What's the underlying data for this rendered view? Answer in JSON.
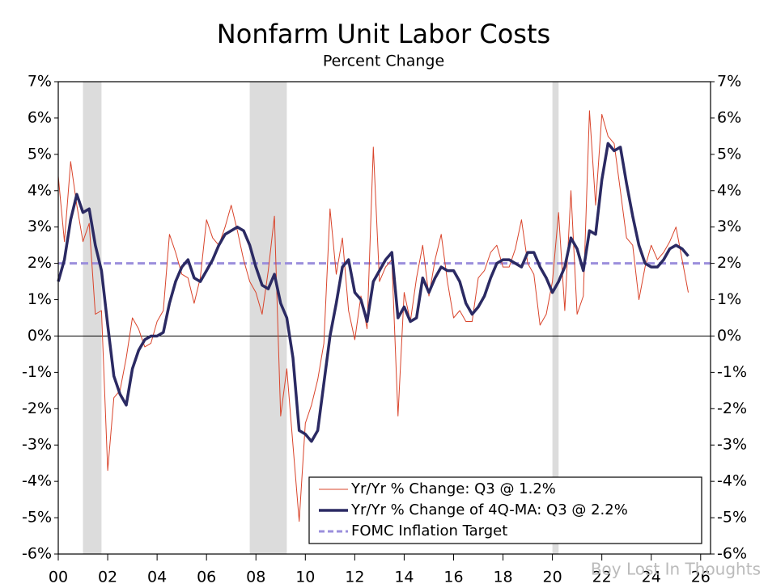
{
  "chart_data": {
    "type": "line",
    "title": "Nonfarm Unit Labor Costs",
    "subtitle": "Percent Change",
    "x": [
      2000,
      2000.25,
      2000.5,
      2000.75,
      2001,
      2001.25,
      2001.5,
      2001.75,
      2002,
      2002.25,
      2002.5,
      2002.75,
      2003,
      2003.25,
      2003.5,
      2003.75,
      2004,
      2004.25,
      2004.5,
      2004.75,
      2005,
      2005.25,
      2005.5,
      2005.75,
      2006,
      2006.25,
      2006.5,
      2006.75,
      2007,
      2007.25,
      2007.5,
      2007.75,
      2008,
      2008.25,
      2008.5,
      2008.75,
      2009,
      2009.25,
      2009.5,
      2009.75,
      2010,
      2010.25,
      2010.5,
      2010.75,
      2011,
      2011.25,
      2011.5,
      2011.75,
      2012,
      2012.25,
      2012.5,
      2012.75,
      2013,
      2013.25,
      2013.5,
      2013.75,
      2014,
      2014.25,
      2014.5,
      2014.75,
      2015,
      2015.25,
      2015.5,
      2015.75,
      2016,
      2016.25,
      2016.5,
      2016.75,
      2017,
      2017.25,
      2017.5,
      2017.75,
      2018,
      2018.25,
      2018.5,
      2018.75,
      2019,
      2019.25,
      2019.5,
      2019.75,
      2020,
      2020.25,
      2020.5,
      2020.75,
      2021,
      2021.25,
      2021.5,
      2021.75,
      2022,
      2022.25,
      2022.5,
      2022.75,
      2023,
      2023.25,
      2023.5,
      2023.75,
      2024,
      2024.25,
      2024.5,
      2024.75,
      2025,
      2025.25,
      2025.5
    ],
    "series": [
      {
        "name": "Yr/Yr % Change: Q3 @ 1.2%",
        "color": "#d9442b",
        "width": 1,
        "values": [
          4.4,
          2.6,
          4.8,
          3.6,
          2.6,
          3.1,
          0.6,
          0.7,
          -3.7,
          -1.7,
          -1.5,
          -0.6,
          0.5,
          0.2,
          -0.3,
          -0.2,
          0.4,
          0.7,
          2.8,
          2.3,
          1.7,
          1.6,
          0.9,
          1.6,
          3.2,
          2.7,
          2.5,
          3.0,
          3.6,
          2.9,
          2.1,
          1.5,
          1.2,
          0.6,
          1.8,
          3.3,
          -2.2,
          -0.9,
          -3.0,
          -5.1,
          -2.4,
          -1.9,
          -1.2,
          -0.2,
          3.5,
          1.7,
          2.7,
          0.7,
          -0.1,
          1.1,
          0.2,
          5.2,
          1.5,
          1.9,
          2.1,
          -2.2,
          1.2,
          0.4,
          1.6,
          2.5,
          1.1,
          2.1,
          2.8,
          1.5,
          0.5,
          0.7,
          0.4,
          0.4,
          1.6,
          1.8,
          2.3,
          2.5,
          1.9,
          1.9,
          2.4,
          3.2,
          2.0,
          1.7,
          0.3,
          0.6,
          1.5,
          3.4,
          0.7,
          4.0,
          0.6,
          1.1,
          6.2,
          3.6,
          6.1,
          5.5,
          5.3,
          4.0,
          2.7,
          2.5,
          1.0,
          1.9,
          2.5,
          2.1,
          2.3,
          2.6,
          3.0,
          2.1,
          1.2
        ]
      },
      {
        "name": "Yr/Yr % Change of 4Q-MA: Q3 @ 2.2%",
        "color": "#2b2a63",
        "width": 3.5,
        "values": [
          1.5,
          2.1,
          3.2,
          3.9,
          3.4,
          3.5,
          2.5,
          1.8,
          0.3,
          -1.1,
          -1.6,
          -1.9,
          -0.9,
          -0.4,
          -0.1,
          0.0,
          0.0,
          0.1,
          0.9,
          1.5,
          1.9,
          2.1,
          1.6,
          1.5,
          1.8,
          2.1,
          2.5,
          2.8,
          2.9,
          3.0,
          2.9,
          2.5,
          1.9,
          1.4,
          1.3,
          1.7,
          0.9,
          0.5,
          -0.6,
          -2.6,
          -2.7,
          -2.9,
          -2.6,
          -1.3,
          0.0,
          0.9,
          1.9,
          2.1,
          1.2,
          1.0,
          0.4,
          1.5,
          1.8,
          2.1,
          2.3,
          0.5,
          0.8,
          0.4,
          0.5,
          1.6,
          1.2,
          1.6,
          1.9,
          1.8,
          1.8,
          1.5,
          0.9,
          0.6,
          0.8,
          1.1,
          1.6,
          2.0,
          2.1,
          2.1,
          2.0,
          1.9,
          2.3,
          2.3,
          1.9,
          1.6,
          1.2,
          1.5,
          1.9,
          2.7,
          2.4,
          1.8,
          2.9,
          2.8,
          4.3,
          5.3,
          5.1,
          5.2,
          4.2,
          3.3,
          2.5,
          2.0,
          1.9,
          1.9,
          2.1,
          2.4,
          2.5,
          2.4,
          2.2
        ]
      }
    ],
    "reference_line": {
      "name": "FOMC Inflation Target",
      "value": 2,
      "color": "#9b8fdc"
    },
    "shaded_periods": [
      [
        2001,
        2001.75
      ],
      [
        2007.75,
        2009.25
      ],
      [
        2020,
        2020.25
      ]
    ],
    "shade_color": "#dcdcdc",
    "xlim": [
      2000,
      2026.4
    ],
    "xticks": [
      {
        "value": 2000,
        "label": "00"
      },
      {
        "value": 2002,
        "label": "02"
      },
      {
        "value": 2004,
        "label": "04"
      },
      {
        "value": 2006,
        "label": "06"
      },
      {
        "value": 2008,
        "label": "08"
      },
      {
        "value": 2010,
        "label": "10"
      },
      {
        "value": 2012,
        "label": "12"
      },
      {
        "value": 2014,
        "label": "14"
      },
      {
        "value": 2016,
        "label": "16"
      },
      {
        "value": 2018,
        "label": "18"
      },
      {
        "value": 2020,
        "label": "20"
      },
      {
        "value": 2022,
        "label": "22"
      },
      {
        "value": 2024,
        "label": "24"
      },
      {
        "value": 2026,
        "label": "26"
      }
    ],
    "ylim": [
      -6,
      7
    ],
    "yticks": [
      {
        "value": 7,
        "label": "7%"
      },
      {
        "value": 6,
        "label": "6%"
      },
      {
        "value": 5,
        "label": "5%"
      },
      {
        "value": 4,
        "label": "4%"
      },
      {
        "value": 3,
        "label": "3%"
      },
      {
        "value": 2,
        "label": "2%"
      },
      {
        "value": 1,
        "label": "1%"
      },
      {
        "value": 0,
        "label": "0%"
      },
      {
        "value": -1,
        "label": "-1%"
      },
      {
        "value": -2,
        "label": "-2%"
      },
      {
        "value": -3,
        "label": "-3%"
      },
      {
        "value": -4,
        "label": "-4%"
      },
      {
        "value": -5,
        "label": "-5%"
      },
      {
        "value": -6,
        "label": "-6%"
      }
    ],
    "legend": "lower right",
    "annotation": "Boy Lost In Thoughts"
  }
}
